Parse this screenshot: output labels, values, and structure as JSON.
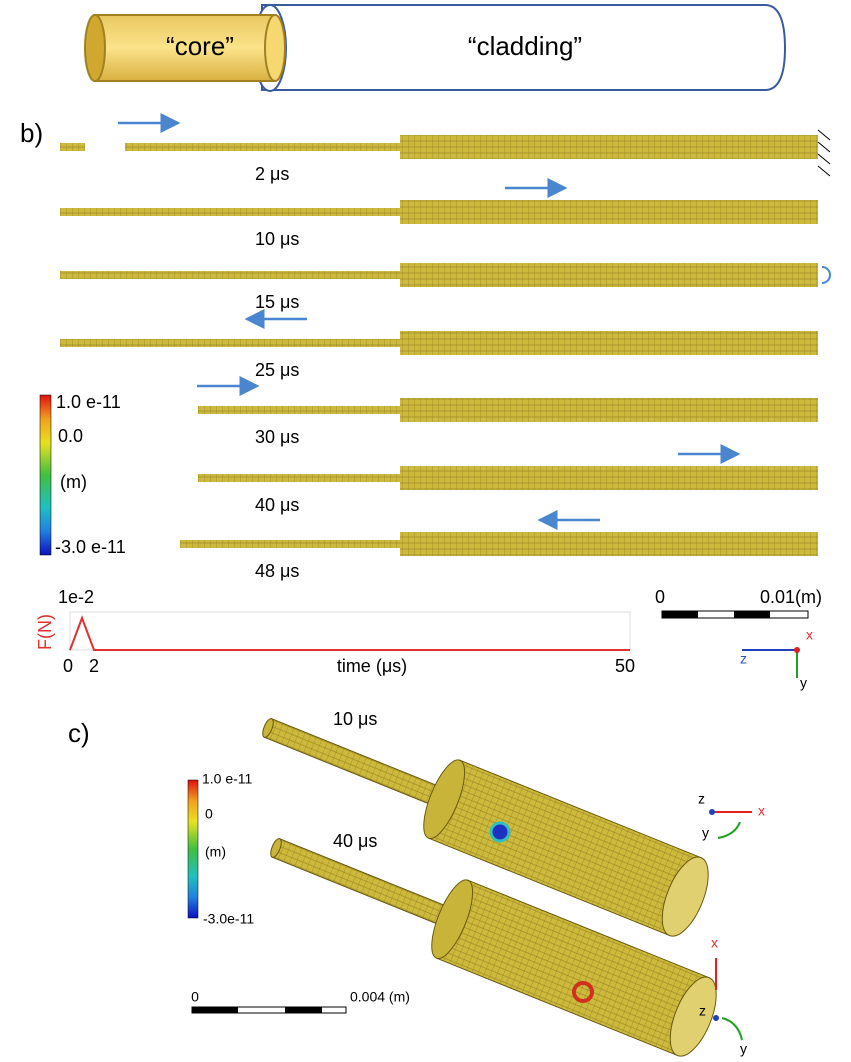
{
  "cartoon": {
    "core": "“core”",
    "cladding": "“cladding”"
  },
  "panel_b": {
    "label": "b)",
    "times": [
      "2 μs",
      "10 μs",
      "15 μs",
      "25 μs",
      "30 μs",
      "40 μs",
      "48 μs"
    ],
    "colorbar": {
      "max": "1.0 e-11",
      "zero": "0.0",
      "unit": "(m)",
      "min": "-3.0 e-11"
    },
    "force_plot": {
      "peak": "1e-2",
      "ylabel": "F(N)",
      "x0": "0",
      "x1": "2",
      "xlabel": "time (μs)",
      "xend": "50"
    },
    "scalebar": {
      "start": "0",
      "end": "0.01(m)"
    },
    "axes": {
      "x": "x",
      "z": "z",
      "y": "y"
    }
  },
  "panel_c": {
    "label": "c)",
    "times": [
      "10 μs",
      "40 μs"
    ],
    "colorbar": {
      "max": "1.0 e-11",
      "zero": "0",
      "unit": "(m)",
      "min": "-3.0e-11"
    },
    "scalebar": {
      "start": "0",
      "end": "0.004 (m)"
    },
    "axes_top": {
      "z": "z",
      "x": "x",
      "y": "y"
    },
    "axes_bottom": {
      "x": "x",
      "z": "z",
      "y": "y"
    }
  }
}
